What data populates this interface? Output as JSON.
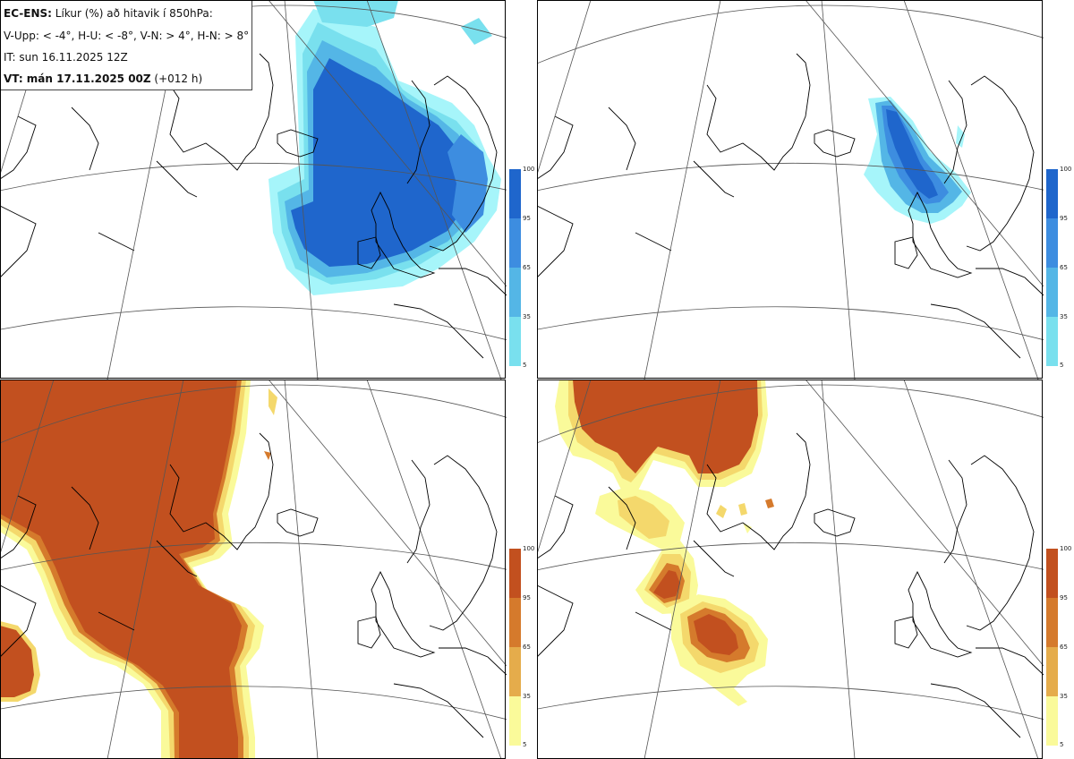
{
  "header": {
    "line1_bold": "EC-ENS:",
    "line1_rest": " Líkur (%) að hitavik í 850hPa:",
    "line2": "V-Upp: < -4°, H-U: < -8°, V-N: > 4°, H-N: > 8°",
    "line3": "IT: sun 16.11.2025 12Z",
    "line4_bold": "VT: mán 17.11.2025 00Z",
    "line4_rest": " (+012 h)"
  },
  "legend_ticks": [
    "100",
    "95",
    "65",
    "35",
    "5"
  ],
  "scales": {
    "blue": [
      "#1f66cc",
      "#3d8de0",
      "#54b6e6",
      "#79e0ee",
      "#a6f5fa"
    ],
    "orange": [
      "#c2501f",
      "#d57a2c",
      "#e5ac4b",
      "#f4d86c",
      "#fafa9a"
    ]
  },
  "panels": [
    {
      "name": "V-Upp",
      "scale": "blue"
    },
    {
      "name": "H-U",
      "scale": "blue"
    },
    {
      "name": "V-N",
      "scale": "orange"
    },
    {
      "name": "H-N",
      "scale": "orange"
    }
  ]
}
